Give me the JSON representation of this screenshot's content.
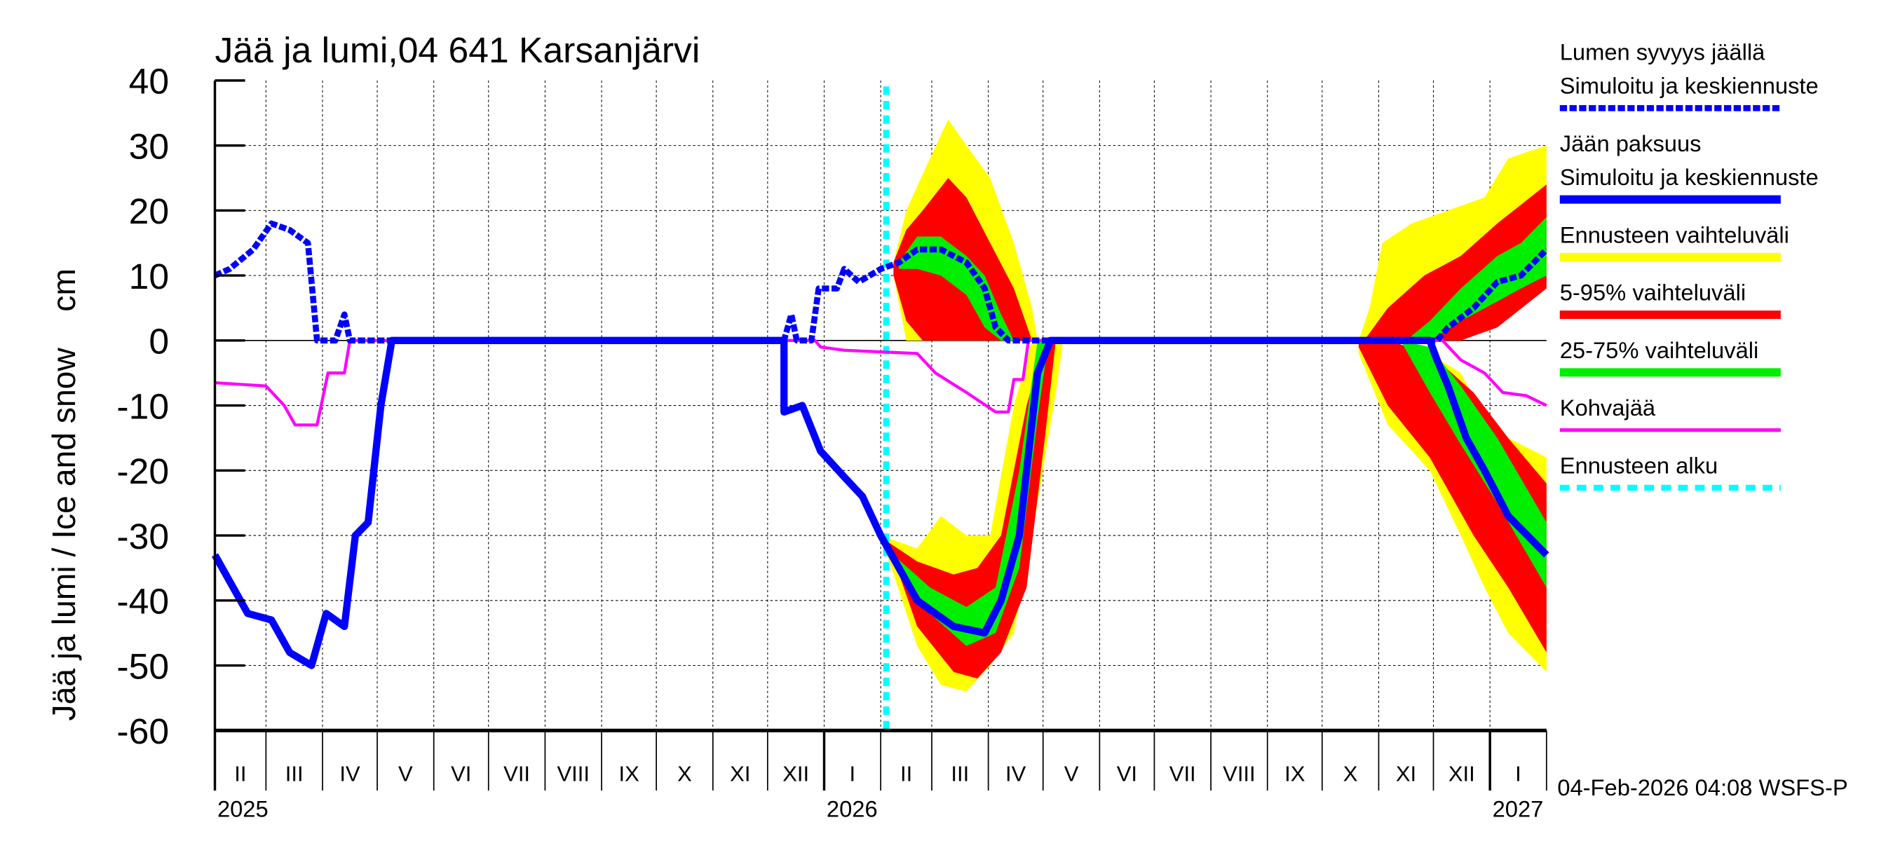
{
  "chart_data": {
    "type": "area",
    "title": "Jää ja lumi,04 641 Karsanjärvi",
    "ylabel": "Jää ja lumi / Ice and snow    cm",
    "ylim": [
      -60,
      40
    ],
    "yticks": [
      40,
      30,
      20,
      10,
      0,
      -10,
      -20,
      -30,
      -40,
      -50,
      -60
    ],
    "xlim": [
      "2025-02-01",
      "2027-02-01"
    ],
    "grid": true,
    "legend_position": "right",
    "month_labels": [
      "II",
      "III",
      "IV",
      "V",
      "VI",
      "VII",
      "VIII",
      "IX",
      "X",
      "XI",
      "XII",
      "I",
      "II",
      "III",
      "IV",
      "V",
      "VI",
      "VII",
      "VIII",
      "IX",
      "X",
      "XI",
      "XII",
      "I"
    ],
    "year_labels": [
      {
        "label": "2025",
        "date": "2025-02-01"
      },
      {
        "label": "2026",
        "date": "2026-01-01"
      },
      {
        "label": "2027",
        "date": "2027-01-01"
      }
    ],
    "forecast_start": "2026-02-04",
    "timestamp": "04-Feb-2026 04:08 WSFS-P",
    "colors": {
      "snow": "#0000ff",
      "ice": "#0000ff",
      "range": "#ffff00",
      "p5_95": "#ff0000",
      "p25_75": "#00ee00",
      "kohva": "#ff00ff",
      "forecast": "#00ffff"
    },
    "legend": [
      {
        "label1": "Lumen syvyys jäällä",
        "label2": "Simuloitu ja keskiennuste",
        "style": "snow"
      },
      {
        "label1": "Jään paksuus",
        "label2": "Simuloitu ja keskiennuste",
        "style": "ice"
      },
      {
        "label1": "Ennusteen vaihteluväli",
        "style": "range"
      },
      {
        "label1": "5-95% vaihteluväli",
        "style": "p5_95"
      },
      {
        "label1": "25-75% vaihteluväli",
        "style": "p25_75"
      },
      {
        "label1": "Kohvajää",
        "style": "kohva"
      },
      {
        "label1": "Ennusteen alku",
        "style": "forecast"
      }
    ],
    "bands": [
      {
        "style": "range",
        "points": [
          [
            "2026-02-08",
            10,
            12
          ],
          [
            "2026-02-15",
            0,
            20
          ],
          [
            "2026-02-28",
            0,
            28
          ],
          [
            "2026-03-10",
            0,
            34
          ],
          [
            "2026-03-20",
            0,
            30
          ],
          [
            "2026-04-02",
            0,
            25
          ],
          [
            "2026-04-15",
            0,
            15
          ],
          [
            "2026-04-25",
            0,
            5
          ],
          [
            "2026-04-28",
            0,
            0
          ]
        ]
      },
      {
        "style": "range",
        "points": [
          [
            "2026-10-21",
            0,
            0
          ],
          [
            "2026-10-27",
            0,
            5
          ],
          [
            "2026-11-03",
            0,
            15
          ],
          [
            "2026-11-19",
            0,
            18
          ],
          [
            "2026-12-09",
            2,
            20
          ],
          [
            "2026-12-29",
            5,
            22
          ],
          [
            "2027-01-11",
            8,
            28
          ],
          [
            "2027-02-01",
            10,
            30
          ]
        ]
      },
      {
        "style": "range",
        "points": [
          [
            "2026-02-01",
            -30,
            -30
          ],
          [
            "2026-02-21",
            -47,
            -32
          ],
          [
            "2026-03-06",
            -53,
            -27
          ],
          [
            "2026-03-20",
            -54,
            -30
          ],
          [
            "2026-04-02",
            -50,
            -30
          ],
          [
            "2026-04-15",
            -45,
            -10
          ],
          [
            "2026-04-25",
            -30,
            0
          ],
          [
            "2026-05-08",
            -8,
            0
          ],
          [
            "2026-05-12",
            0,
            0
          ]
        ]
      },
      {
        "style": "range",
        "points": [
          [
            "2026-10-21",
            -2,
            0
          ],
          [
            "2026-11-06",
            -13,
            0
          ],
          [
            "2026-11-29",
            -20,
            -2
          ],
          [
            "2026-12-16",
            -30,
            -5
          ],
          [
            "2026-12-29",
            -38,
            -12
          ],
          [
            "2027-01-11",
            -45,
            -15
          ],
          [
            "2027-02-01",
            -51,
            -18
          ]
        ]
      },
      {
        "style": "p5_95",
        "points": [
          [
            "2026-02-08",
            10,
            12
          ],
          [
            "2026-02-15",
            3,
            17
          ],
          [
            "2026-02-24",
            0,
            20
          ],
          [
            "2026-03-10",
            0,
            25
          ],
          [
            "2026-03-20",
            0,
            22
          ],
          [
            "2026-04-02",
            0,
            15
          ],
          [
            "2026-04-15",
            0,
            8
          ],
          [
            "2026-04-25",
            0,
            0
          ]
        ]
      },
      {
        "style": "p5_95",
        "points": [
          [
            "2026-10-24",
            0,
            0
          ],
          [
            "2026-11-06",
            0,
            5
          ],
          [
            "2026-11-26",
            0,
            10
          ],
          [
            "2026-12-16",
            0,
            13
          ],
          [
            "2027-01-05",
            2,
            18
          ],
          [
            "2027-02-01",
            8,
            24
          ]
        ]
      },
      {
        "style": "p5_95",
        "points": [
          [
            "2026-02-05",
            -31,
            -31
          ],
          [
            "2026-02-21",
            -44,
            -34
          ],
          [
            "2026-03-13",
            -51,
            -36
          ],
          [
            "2026-03-26",
            -52,
            -35
          ],
          [
            "2026-04-08",
            -48,
            -30
          ],
          [
            "2026-04-22",
            -38,
            -10
          ],
          [
            "2026-05-02",
            -15,
            0
          ],
          [
            "2026-05-08",
            0,
            0
          ]
        ]
      },
      {
        "style": "p5_95",
        "points": [
          [
            "2026-10-21",
            -1,
            0
          ],
          [
            "2026-11-06",
            -10,
            0
          ],
          [
            "2026-11-29",
            -18,
            -2
          ],
          [
            "2026-12-23",
            -30,
            -8
          ],
          [
            "2027-01-11",
            -38,
            -15
          ],
          [
            "2027-02-01",
            -48,
            -22
          ]
        ]
      },
      {
        "style": "p25_75",
        "points": [
          [
            "2026-02-11",
            11,
            12
          ],
          [
            "2026-02-21",
            11,
            16
          ],
          [
            "2026-03-06",
            10,
            16
          ],
          [
            "2026-03-20",
            7,
            13
          ],
          [
            "2026-03-30",
            2,
            10
          ],
          [
            "2026-04-08",
            0,
            4
          ],
          [
            "2026-04-15",
            0,
            0
          ]
        ]
      },
      {
        "style": "p25_75",
        "points": [
          [
            "2026-11-16",
            0,
            0
          ],
          [
            "2026-11-29",
            0,
            3
          ],
          [
            "2026-12-16",
            3,
            8
          ],
          [
            "2027-01-05",
            6,
            13
          ],
          [
            "2027-01-18",
            8,
            15
          ],
          [
            "2027-02-01",
            10,
            19
          ]
        ]
      },
      {
        "style": "p25_75",
        "points": [
          [
            "2026-02-08",
            -33,
            -33
          ],
          [
            "2026-02-28",
            -42,
            -38
          ],
          [
            "2026-03-20",
            -47,
            -41
          ],
          [
            "2026-04-05",
            -45,
            -38
          ],
          [
            "2026-04-18",
            -35,
            -20
          ],
          [
            "2026-04-28",
            -12,
            0
          ],
          [
            "2026-05-04",
            0,
            0
          ]
        ]
      },
      {
        "style": "p25_75",
        "points": [
          [
            "2026-11-13",
            0,
            0
          ],
          [
            "2026-11-29",
            -8,
            -1
          ],
          [
            "2026-12-16",
            -16,
            -7
          ],
          [
            "2027-01-05",
            -25,
            -15
          ],
          [
            "2027-02-01",
            -38,
            -28
          ]
        ]
      }
    ],
    "series": [
      {
        "style": "kohva",
        "points": [
          [
            "2025-02-01",
            -6.5
          ],
          [
            "2025-03-01",
            -7
          ],
          [
            "2025-03-11",
            -10
          ],
          [
            "2025-03-17",
            -13
          ],
          [
            "2025-03-29",
            -13
          ],
          [
            "2025-04-04",
            -5
          ],
          [
            "2025-04-13",
            -5
          ],
          [
            "2025-04-16",
            0
          ],
          [
            "2025-12-27",
            0
          ],
          [
            "2025-12-30",
            -1
          ],
          [
            "2026-01-12",
            -1.5
          ],
          [
            "2026-02-21",
            -2
          ],
          [
            "2026-03-03",
            -5
          ],
          [
            "2026-03-20",
            -8
          ],
          [
            "2026-04-05",
            -11
          ],
          [
            "2026-04-12",
            -11
          ],
          [
            "2026-04-15",
            -6
          ],
          [
            "2026-04-20",
            -6
          ],
          [
            "2026-04-23",
            0
          ],
          [
            "2026-12-06",
            0
          ],
          [
            "2026-12-16",
            -3
          ],
          [
            "2026-12-29",
            -5
          ],
          [
            "2027-01-08",
            -8
          ],
          [
            "2027-01-21",
            -8.5
          ],
          [
            "2027-02-01",
            -10
          ]
        ]
      },
      {
        "style": "snow",
        "points": [
          [
            "2025-02-01",
            10
          ],
          [
            "2025-02-09",
            11
          ],
          [
            "2025-02-22",
            14
          ],
          [
            "2025-03-04",
            18
          ],
          [
            "2025-03-14",
            17
          ],
          [
            "2025-03-24",
            15
          ],
          [
            "2025-03-29",
            0
          ],
          [
            "2025-04-08",
            0
          ],
          [
            "2025-04-13",
            4
          ],
          [
            "2025-04-16",
            0
          ],
          [
            "2025-12-10",
            0
          ],
          [
            "2025-12-14",
            4
          ],
          [
            "2025-12-17",
            0
          ],
          [
            "2025-12-25",
            0
          ],
          [
            "2025-12-29",
            8
          ],
          [
            "2026-01-08",
            8
          ],
          [
            "2026-01-12",
            11
          ],
          [
            "2026-01-20",
            9
          ],
          [
            "2026-02-01",
            11
          ],
          [
            "2026-02-11",
            12
          ],
          [
            "2026-02-21",
            14
          ],
          [
            "2026-03-06",
            14
          ],
          [
            "2026-03-20",
            12
          ],
          [
            "2026-03-30",
            8
          ],
          [
            "2026-04-05",
            2
          ],
          [
            "2026-04-12",
            0
          ],
          [
            "2026-12-03",
            0
          ],
          [
            "2026-12-09",
            2
          ],
          [
            "2026-12-23",
            5
          ],
          [
            "2027-01-05",
            9
          ],
          [
            "2027-01-18",
            10
          ],
          [
            "2027-02-01",
            14
          ]
        ]
      },
      {
        "style": "ice",
        "points": [
          [
            "2025-02-01",
            -33
          ],
          [
            "2025-02-09",
            -37
          ],
          [
            "2025-02-19",
            -42
          ],
          [
            "2025-03-04",
            -43
          ],
          [
            "2025-03-14",
            -48
          ],
          [
            "2025-03-26",
            -50
          ],
          [
            "2025-04-03",
            -42
          ],
          [
            "2025-04-13",
            -44
          ],
          [
            "2025-04-19",
            -30
          ],
          [
            "2025-04-26",
            -28
          ],
          [
            "2025-05-03",
            -10
          ],
          [
            "2025-05-09",
            0
          ],
          [
            "2025-12-10",
            0
          ],
          [
            "2025-12-10",
            -11
          ],
          [
            "2025-12-20",
            -10
          ],
          [
            "2025-12-30",
            -17
          ],
          [
            "2026-01-12",
            -21
          ],
          [
            "2026-01-22",
            -24
          ],
          [
            "2026-02-01",
            -30
          ],
          [
            "2026-02-21",
            -40
          ],
          [
            "2026-03-13",
            -44
          ],
          [
            "2026-03-30",
            -45
          ],
          [
            "2026-04-08",
            -40
          ],
          [
            "2026-04-18",
            -30
          ],
          [
            "2026-04-28",
            -5
          ],
          [
            "2026-05-05",
            0
          ],
          [
            "2026-11-29",
            0
          ],
          [
            "2026-12-03",
            -3
          ],
          [
            "2026-12-09",
            -7
          ],
          [
            "2026-12-19",
            -15
          ],
          [
            "2026-12-29",
            -20
          ],
          [
            "2027-01-11",
            -27
          ],
          [
            "2027-02-01",
            -33
          ]
        ]
      }
    ]
  }
}
